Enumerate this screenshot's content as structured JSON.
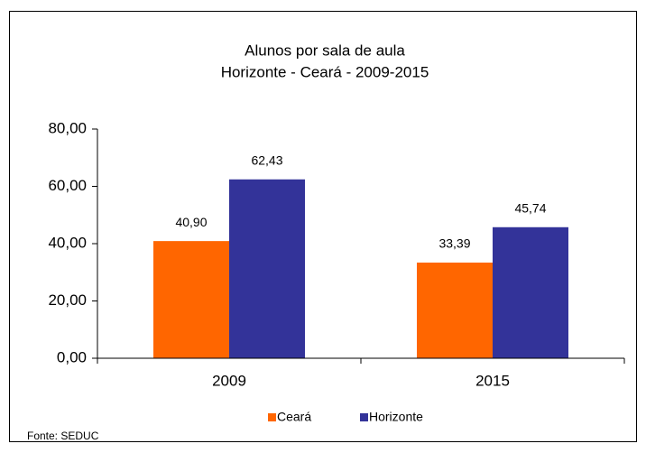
{
  "chart_data": {
    "type": "bar",
    "title": "Alunos por sala de aula",
    "subtitle": "Horizonte - Ceará - 2009-2015",
    "categories": [
      "2009",
      "2015"
    ],
    "series": [
      {
        "name": "Ceará",
        "color": "#ff6600",
        "values": [
          40.9,
          33.39
        ],
        "value_labels": [
          "40,90",
          "33,39"
        ]
      },
      {
        "name": "Horizonte",
        "color": "#333399",
        "values": [
          62.43,
          45.74
        ],
        "value_labels": [
          "62,43",
          "45,74"
        ]
      }
    ],
    "ylim": [
      0,
      80
    ],
    "yticks": [
      {
        "value": 0,
        "label": "0,00"
      },
      {
        "value": 20,
        "label": "20,00"
      },
      {
        "value": 40,
        "label": "40,00"
      },
      {
        "value": 60,
        "label": "60,00"
      },
      {
        "value": 80,
        "label": "80,00"
      }
    ],
    "legend": "bottom",
    "source": "Fonte: SEDUC"
  }
}
